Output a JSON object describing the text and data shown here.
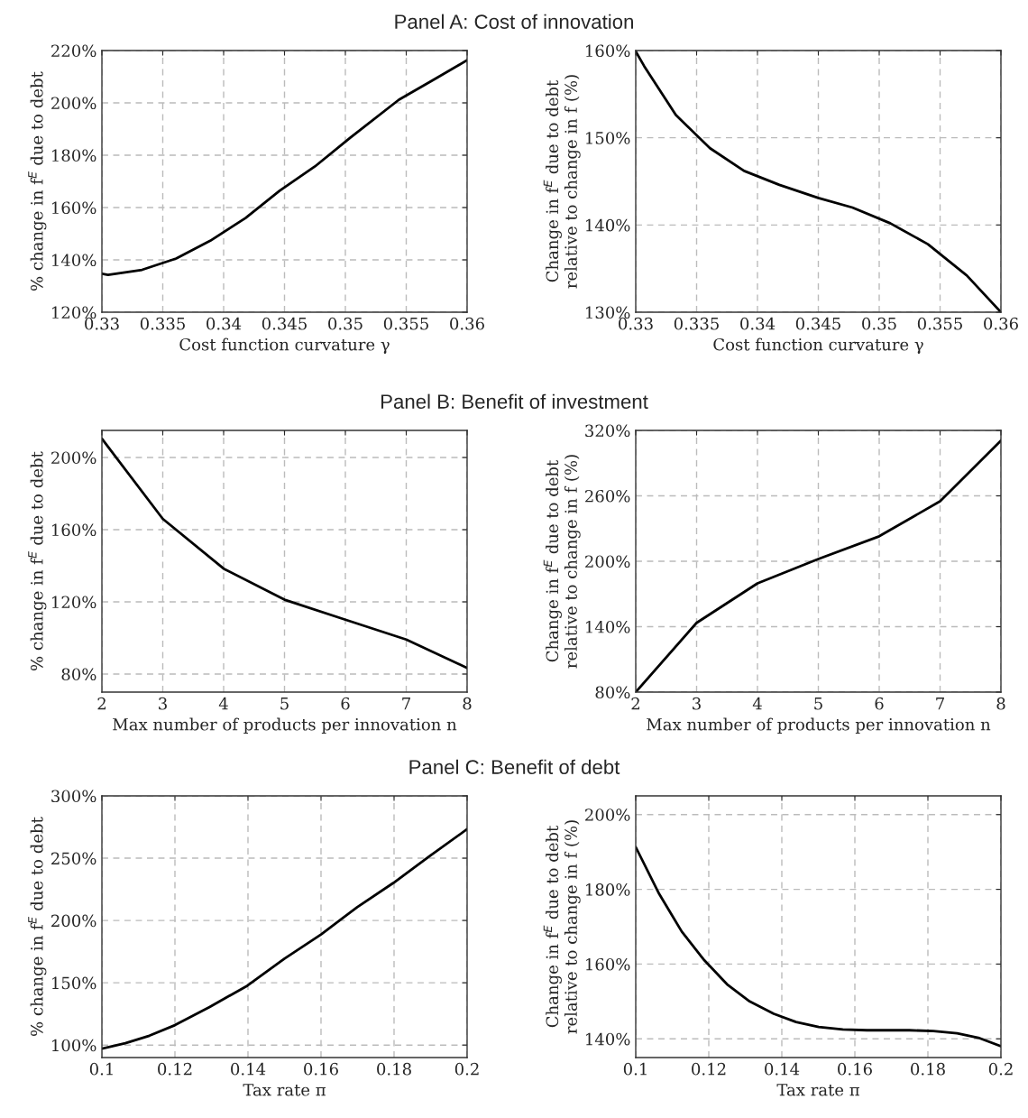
{
  "chart_data": [
    {
      "type": "line",
      "title": "Panel A: Cost of innovation",
      "xlabel": "Cost function curvature γ",
      "ylabel": "% change in f$^{E}$ due to debt",
      "grid": true,
      "line_style": "solid",
      "marker": "none",
      "xlim": [
        0.33,
        0.36
      ],
      "xticks": [
        0.33,
        0.335,
        0.34,
        0.345,
        0.35,
        0.355,
        0.36
      ],
      "ylim": [
        120,
        220
      ],
      "yticks": [
        {
          "value": 120,
          "label": "120%"
        },
        {
          "value": 140,
          "label": "140%"
        },
        {
          "value": 160,
          "label": "160%"
        },
        {
          "value": 180,
          "label": "180%"
        },
        {
          "value": 200,
          "label": "200%"
        },
        {
          "value": 220,
          "label": "220%"
        }
      ],
      "series": [
        {
          "color": "#000000",
          "x": [
            0.33,
            0.3305,
            0.3333,
            0.3361,
            0.3389,
            0.3418,
            0.3446,
            0.3475,
            0.3504,
            0.3544,
            0.3572,
            0.36
          ],
          "values": [
            134.7,
            134.3,
            136.2,
            140.5,
            147.3,
            156.0,
            166.4,
            175.7,
            186.7,
            201.2,
            208.7,
            216.3
          ]
        }
      ]
    },
    {
      "type": "line",
      "xlabel": "Cost function curvature γ",
      "ylabel": "Change in f$^{E}$ due to debt\nrelative to change in f (%)",
      "grid": true,
      "line_style": "solid",
      "marker": "none",
      "xlim": [
        0.33,
        0.36
      ],
      "xticks": [
        0.33,
        0.335,
        0.34,
        0.345,
        0.35,
        0.355,
        0.36
      ],
      "ylim": [
        130,
        160
      ],
      "yticks": [
        {
          "value": 130,
          "label": "130%"
        },
        {
          "value": 140,
          "label": "140%"
        },
        {
          "value": 150,
          "label": "150%"
        },
        {
          "value": 160,
          "label": "160%"
        }
      ],
      "series": [
        {
          "color": "#000000",
          "x": [
            0.33,
            0.3307,
            0.3333,
            0.3361,
            0.3389,
            0.3418,
            0.345,
            0.3478,
            0.3509,
            0.354,
            0.3572,
            0.36
          ],
          "values": [
            159.9,
            158.2,
            152.6,
            148.8,
            146.2,
            144.6,
            143.1,
            142.0,
            140.2,
            137.8,
            134.2,
            130.0
          ]
        }
      ]
    },
    {
      "type": "line",
      "title": "Panel B: Benefit of investment",
      "xlabel": "Max number of products per innovation n",
      "ylabel": "% change in f$^{E}$ due to debt",
      "grid": true,
      "line_style": "solid",
      "marker": "none",
      "xlim": [
        2,
        8
      ],
      "xticks": [
        2,
        3,
        4,
        5,
        6,
        7,
        8
      ],
      "ylim": [
        70,
        215
      ],
      "yticks": [
        {
          "value": 80,
          "label": "80%"
        },
        {
          "value": 120,
          "label": "120%"
        },
        {
          "value": 160,
          "label": "160%"
        },
        {
          "value": 200,
          "label": "200%"
        }
      ],
      "series": [
        {
          "color": "#000000",
          "x": [
            2,
            3,
            4,
            5,
            6,
            7,
            8
          ],
          "values": [
            210.4,
            166.0,
            138.4,
            121.2,
            110.1,
            99.1,
            83.4
          ]
        }
      ]
    },
    {
      "type": "line",
      "xlabel": "Max number of products per innovation n",
      "ylabel": "Change in f$^{E}$ due to debt\nrelative to change in f (%)",
      "grid": true,
      "line_style": "solid",
      "marker": "none",
      "xlim": [
        2,
        8
      ],
      "xticks": [
        2,
        3,
        4,
        5,
        6,
        7,
        8
      ],
      "ylim": [
        80,
        320
      ],
      "yticks": [
        {
          "value": 80,
          "label": "80%"
        },
        {
          "value": 140,
          "label": "140%"
        },
        {
          "value": 200,
          "label": "200%"
        },
        {
          "value": 260,
          "label": "260%"
        },
        {
          "value": 320,
          "label": "320%"
        }
      ],
      "series": [
        {
          "color": "#000000",
          "x": [
            2,
            3,
            4,
            5,
            6,
            7,
            8
          ],
          "values": [
            80,
            143.5,
            179.7,
            202,
            222.9,
            255,
            310.7
          ]
        }
      ]
    },
    {
      "type": "line",
      "title": "Panel C: Benefit of debt",
      "xlabel": "Tax rate π",
      "ylabel": "% change in f$^{E}$ due to debt",
      "grid": true,
      "line_style": "solid",
      "marker": "none",
      "xlim": [
        0.1,
        0.2
      ],
      "xticks": [
        0.1,
        0.12,
        0.14,
        0.16,
        0.18,
        0.2
      ],
      "ylim": [
        90,
        300
      ],
      "yticks": [
        {
          "value": 100,
          "label": "100%"
        },
        {
          "value": 150,
          "label": "150%"
        },
        {
          "value": 200,
          "label": "200%"
        },
        {
          "value": 250,
          "label": "250%"
        },
        {
          "value": 300,
          "label": "300%"
        }
      ],
      "series": [
        {
          "color": "#000000",
          "x": [
            0.1,
            0.1064,
            0.113,
            0.12,
            0.1295,
            0.1398,
            0.15,
            0.16,
            0.1699,
            0.1798,
            0.1897,
            0.2
          ],
          "values": [
            97.1,
            101.5,
            107.5,
            116.0,
            130.6,
            147.6,
            169.4,
            188.8,
            210.7,
            230.1,
            251.5,
            273.3
          ]
        }
      ]
    },
    {
      "type": "line",
      "xlabel": "Tax rate π",
      "ylabel": "Change in f$^{E}$ due to debt\nrelative to change in f (%)",
      "grid": true,
      "line_style": "solid",
      "marker": "none",
      "xlim": [
        0.1,
        0.2
      ],
      "xticks": [
        0.1,
        0.12,
        0.14,
        0.16,
        0.18,
        0.2
      ],
      "ylim": [
        135,
        205
      ],
      "yticks": [
        {
          "value": 140,
          "label": "140%"
        },
        {
          "value": 160,
          "label": "160%"
        },
        {
          "value": 180,
          "label": "180%"
        },
        {
          "value": 200,
          "label": "200%"
        }
      ],
      "series": [
        {
          "color": "#000000",
          "x": [
            0.1,
            0.1064,
            0.1126,
            0.1188,
            0.125,
            0.1312,
            0.1378,
            0.1439,
            0.1501,
            0.1567,
            0.1633,
            0.1749,
            0.1815,
            0.188,
            0.1938,
            0.2
          ],
          "values": [
            191.3,
            178.8,
            168.7,
            161.0,
            154.6,
            150.0,
            146.7,
            144.5,
            143.2,
            142.5,
            142.3,
            142.3,
            142.1,
            141.5,
            140.3,
            138.0
          ]
        }
      ]
    }
  ]
}
